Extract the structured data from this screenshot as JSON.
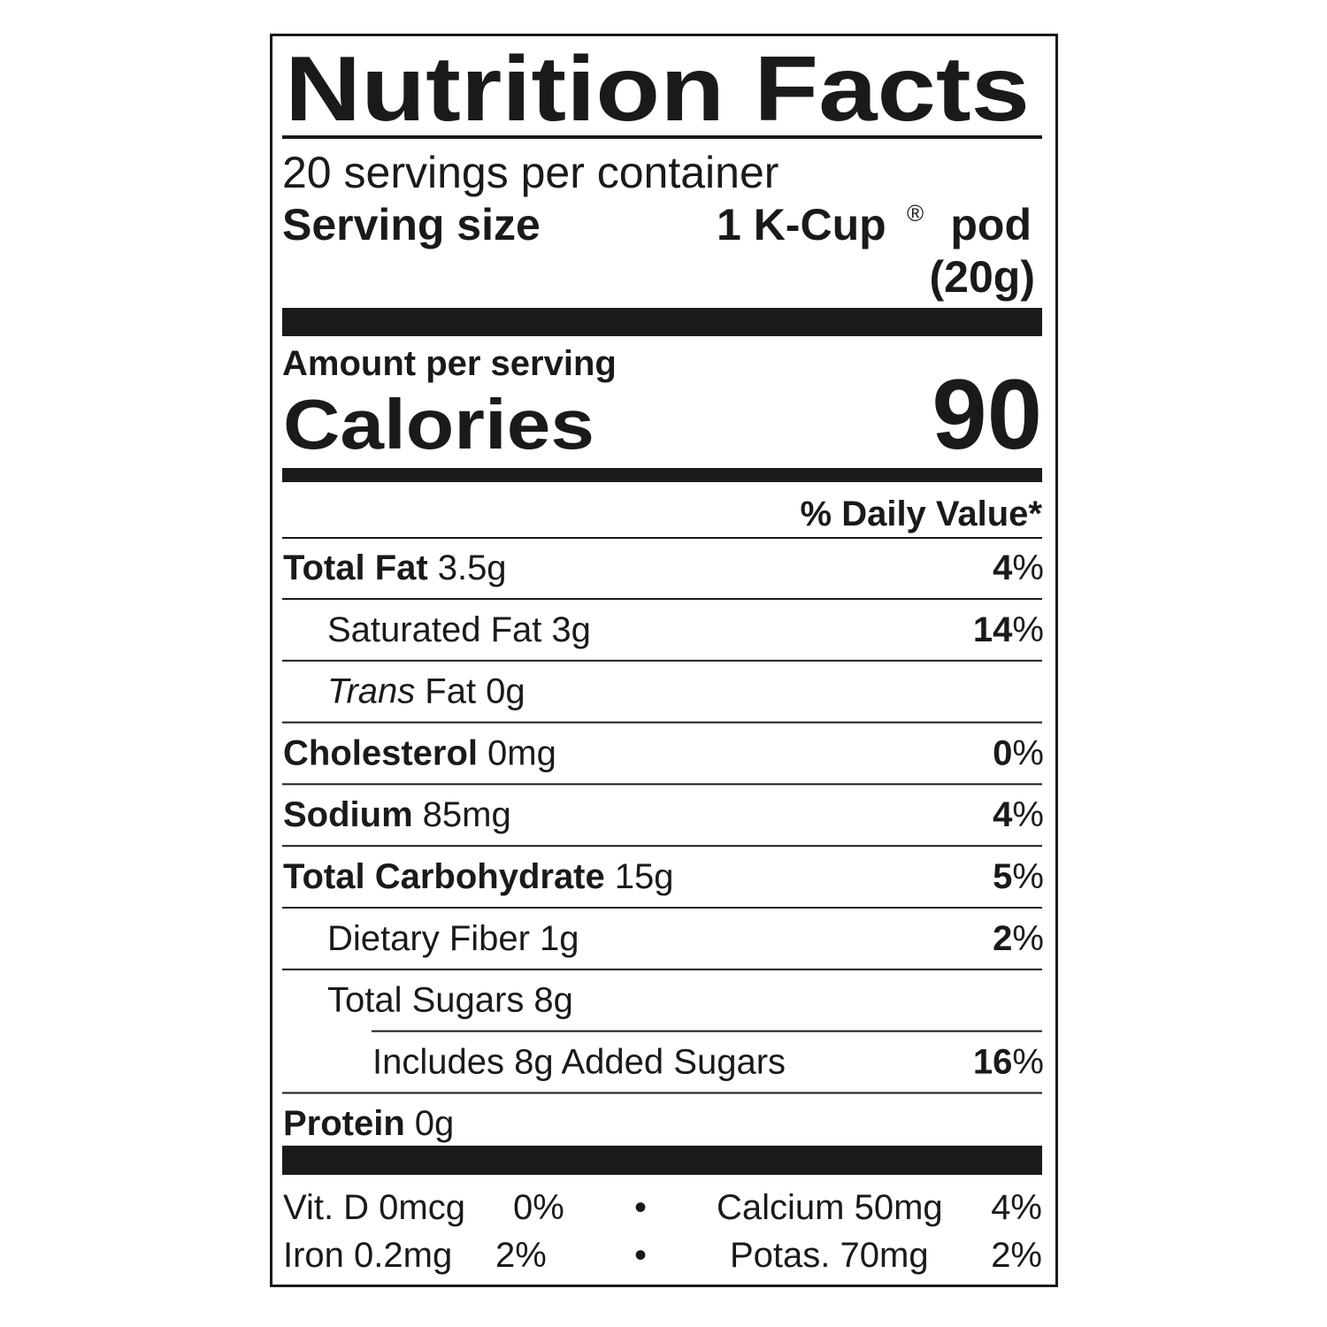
{
  "title": "Nutrition Facts",
  "servings": "20 servings per container",
  "serving_size": {
    "label": "Serving size",
    "value": "1 K-Cup",
    "mark": "®",
    "unit": "pod",
    "weight": "(20g)"
  },
  "amount_per_serving": "Amount per serving",
  "calories": {
    "label": "Calories",
    "value": "90"
  },
  "daily_value_header": "% Daily Value*",
  "nutrients": [
    {
      "name": "Total Fat",
      "amount": "3.5g",
      "dv": "4",
      "dv_unit": "%"
    },
    {
      "name": "Saturated Fat",
      "amount": "3g",
      "dv": "14",
      "dv_unit": "%"
    },
    {
      "prefix": "Trans",
      "name": "Fat",
      "amount": "0g"
    },
    {
      "name": "Cholesterol",
      "amount": "0mg",
      "dv": "0",
      "dv_unit": "%"
    },
    {
      "name": "Sodium",
      "amount": "85mg",
      "dv": "4",
      "dv_unit": "%"
    },
    {
      "name": "Total Carbohydrate",
      "amount": "15g",
      "dv": "5",
      "dv_unit": "%"
    },
    {
      "name": "Dietary Fiber",
      "amount": "1g",
      "dv": "2",
      "dv_unit": "%"
    },
    {
      "name": "Total Sugars",
      "amount": "8g"
    },
    {
      "name": "Includes 8g Added Sugars",
      "dv": "16",
      "dv_unit": "%"
    },
    {
      "name": "Protein",
      "amount": "0g"
    }
  ],
  "micronutrients": [
    {
      "left": {
        "name": "Vit. D 0mcg",
        "dv": "0%"
      },
      "separator": "•",
      "right": {
        "name": "Calcium 50mg",
        "dv": "4%"
      }
    },
    {
      "left": {
        "name": "Iron 0.2mg",
        "dv": "2%"
      },
      "separator": "•",
      "right": {
        "name": "Potas. 70mg",
        "dv": "2%"
      }
    }
  ]
}
